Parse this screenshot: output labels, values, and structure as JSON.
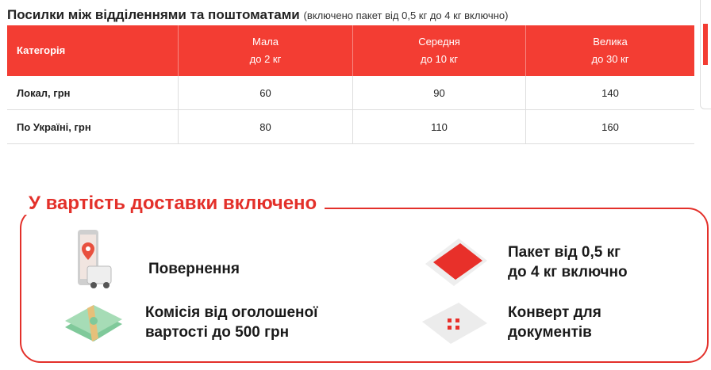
{
  "heading": {
    "title": "Посилки між відділеннями та поштоматами",
    "note": "(включено пакет від 0,5 кг до 4 кг включно)"
  },
  "table": {
    "columns": [
      {
        "label": "Категорія"
      },
      {
        "label": "Мала",
        "sub": "до 2 кг"
      },
      {
        "label": "Середня",
        "sub": "до 10 кг"
      },
      {
        "label": "Велика",
        "sub": "до 30 кг"
      }
    ],
    "rows": [
      [
        "Локал, грн",
        "60",
        "90",
        "140"
      ],
      [
        "По Україні, грн",
        "80",
        "110",
        "160"
      ]
    ]
  },
  "included": {
    "title": "У вартість доставки включено",
    "items": [
      {
        "icon": "phone-map-pin-van-icon",
        "text": "Повернення"
      },
      {
        "icon": "package-icon",
        "line1": "Пакет від 0,5 кг",
        "line2": "до 4 кг включно"
      },
      {
        "icon": "money-stack-icon",
        "line1": "Комісія від оголошеної",
        "line2": "вартості до 500 грн"
      },
      {
        "icon": "envelope-icon",
        "line1": "Конверт для",
        "line2": "документів"
      }
    ]
  },
  "colors": {
    "accent": "#f33d33",
    "banner": "#e3302a"
  }
}
